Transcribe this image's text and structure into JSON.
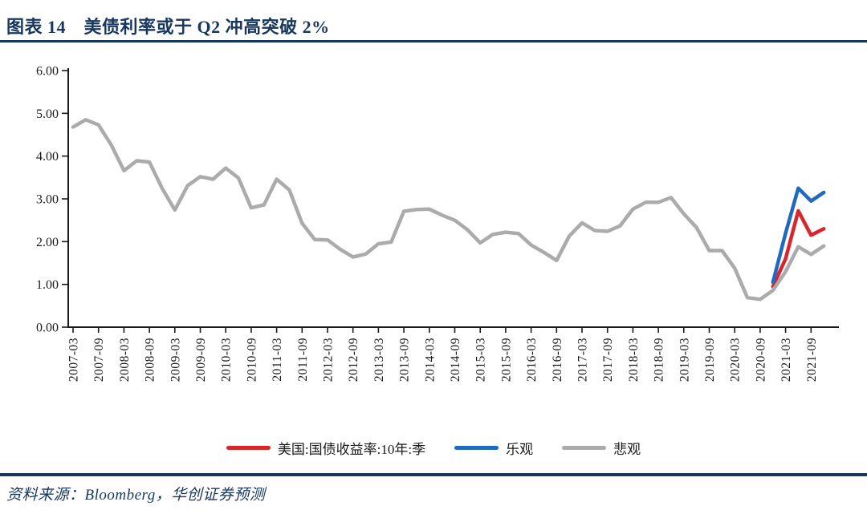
{
  "header": {
    "title": "图表 14　美债利率或于 Q2 冲高突破 2%"
  },
  "footer": {
    "source_label": "资料来源：Bloomberg，华创证券预测"
  },
  "colors": {
    "navy": "#17375E",
    "red": "#D9262C",
    "blue": "#1F69C1",
    "gray": "#ABABAB",
    "axis": "#1A1A1A"
  },
  "chart_data": {
    "type": "line",
    "title": "美债利率或于 Q2 冲高突破 2%",
    "xlabel": "",
    "ylabel": "",
    "ylim": [
      0,
      6
    ],
    "grid": false,
    "legend_position": "bottom",
    "y_tick_labels": [
      "6.00",
      "5.00",
      "4.00",
      "3.00",
      "2.00",
      "1.00",
      "0.00"
    ],
    "x_tick_labels": [
      "2007-03",
      "2007-09",
      "2008-03",
      "2008-09",
      "2009-03",
      "2009-09",
      "2010-03",
      "2010-09",
      "2011-03",
      "2011-09",
      "2012-03",
      "2012-09",
      "2013-03",
      "2013-09",
      "2014-03",
      "2014-09",
      "2015-03",
      "2015-09",
      "2016-03",
      "2016-09",
      "2017-03",
      "2017-09",
      "2018-03",
      "2018-09",
      "2019-03",
      "2019-09",
      "2020-03",
      "2020-09",
      "2021-03",
      "2021-09"
    ],
    "x_quarter_range": [
      "2007-03",
      "2021-12"
    ],
    "series": [
      {
        "name": "美国:国债收益率:10年:季",
        "color_key": "red",
        "start_quarter": "2020-12",
        "values": [
          0.95,
          1.6,
          2.72,
          2.15,
          2.3
        ]
      },
      {
        "name": "乐观",
        "color_key": "blue",
        "start_quarter": "2020-12",
        "values": [
          1.05,
          2.2,
          3.25,
          2.95,
          3.15
        ]
      },
      {
        "name": "悲观",
        "color_key": "gray",
        "start_quarter": "2007-03",
        "values": [
          4.68,
          4.85,
          4.73,
          4.26,
          3.66,
          3.89,
          3.86,
          3.25,
          2.74,
          3.31,
          3.52,
          3.46,
          3.72,
          3.49,
          2.79,
          2.86,
          3.46,
          3.21,
          2.43,
          2.05,
          2.04,
          1.82,
          1.64,
          1.71,
          1.95,
          1.99,
          2.71,
          2.75,
          2.76,
          2.62,
          2.5,
          2.28,
          1.97,
          2.17,
          2.22,
          2.19,
          1.92,
          1.75,
          1.56,
          2.13,
          2.44,
          2.26,
          2.24,
          2.37,
          2.76,
          2.92,
          2.92,
          3.03,
          2.65,
          2.33,
          1.79,
          1.79,
          1.38,
          0.69,
          0.65,
          0.86,
          1.3,
          1.88,
          1.7,
          1.9
        ]
      }
    ]
  }
}
